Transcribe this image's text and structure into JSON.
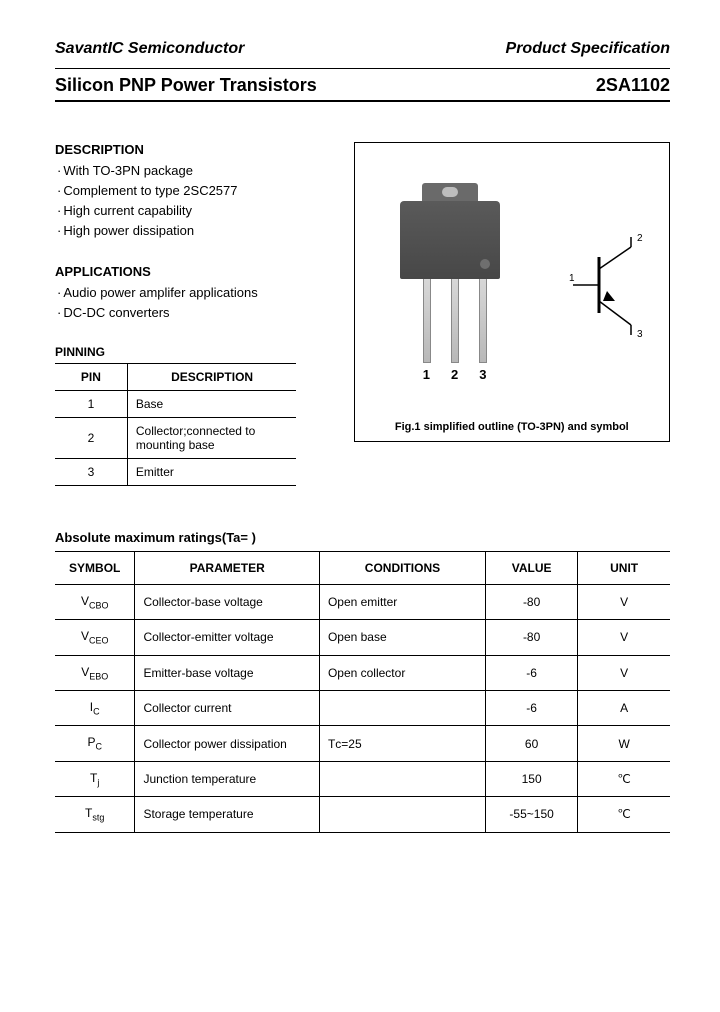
{
  "header": {
    "company": "SavantIC Semiconductor",
    "spec": "Product Specification",
    "title_left": "Silicon PNP Power Transistors",
    "title_right": "2SA1102"
  },
  "description": {
    "heading": "DESCRIPTION",
    "items": [
      "With TO-3PN package",
      "Complement to type 2SC2577",
      "High current capability",
      "High power dissipation"
    ]
  },
  "applications": {
    "heading": "APPLICATIONS",
    "items": [
      "Audio power amplifer applications",
      "DC-DC converters"
    ]
  },
  "pinning": {
    "heading": "PINNING",
    "col_pin": "PIN",
    "col_desc": "DESCRIPTION",
    "rows": [
      {
        "pin": "1",
        "desc": "Base"
      },
      {
        "pin": "2",
        "desc": "Collector;connected to mounting base"
      },
      {
        "pin": "3",
        "desc": "Emitter"
      }
    ]
  },
  "figure": {
    "caption": "Fig.1 simplified outline (TO-3PN) and symbol",
    "lead1": "1",
    "lead2": "2",
    "lead3": "3",
    "sym1": "1",
    "sym2": "2",
    "sym3": "3",
    "package_body_color": "#4a4a4a",
    "lead_color": "#c8c8c8"
  },
  "ratings": {
    "heading": "Absolute maximum ratings(Ta=   )",
    "columns": [
      "SYMBOL",
      "PARAMETER",
      "CONDITIONS",
      "VALUE",
      "UNIT"
    ],
    "col_widths_pct": [
      13,
      30,
      27,
      15,
      15
    ],
    "rows": [
      {
        "sym_base": "V",
        "sym_sub": "CBO",
        "param": "Collector-base voltage",
        "cond": "Open emitter",
        "value": "-80",
        "unit": "V"
      },
      {
        "sym_base": "V",
        "sym_sub": "CEO",
        "param": "Collector-emitter voltage",
        "cond": "Open base",
        "value": "-80",
        "unit": "V"
      },
      {
        "sym_base": "V",
        "sym_sub": "EBO",
        "param": "Emitter-base voltage",
        "cond": "Open collector",
        "value": "-6",
        "unit": "V"
      },
      {
        "sym_base": "I",
        "sym_sub": "C",
        "param": "Collector current",
        "cond": "",
        "value": "-6",
        "unit": "A"
      },
      {
        "sym_base": "P",
        "sym_sub": "C",
        "param": "Collector power dissipation",
        "cond": "Tᴄ=25  ",
        "value": "60",
        "unit": "W"
      },
      {
        "sym_base": "T",
        "sym_sub": "j",
        "param": "Junction temperature",
        "cond": "",
        "value": "150",
        "unit": "℃"
      },
      {
        "sym_base": "T",
        "sym_sub": "stg",
        "param": "Storage temperature",
        "cond": "",
        "value": "-55~150",
        "unit": "℃"
      }
    ]
  },
  "colors": {
    "text": "#000000",
    "border": "#000000",
    "background": "#ffffff"
  }
}
